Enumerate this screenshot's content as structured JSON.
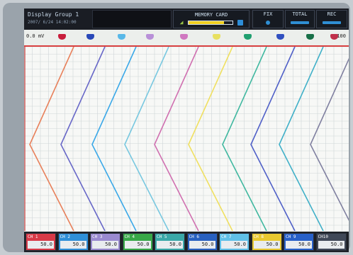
{
  "header": {
    "group_name": "Display Group 1",
    "datetime": "2007/ 6/24 14:02:00",
    "memory_card_label": "MEMORY CARD",
    "memory_card_used_fraction": 0.8,
    "fix_label": "FIX",
    "total_label": "TOTAL",
    "rec_label": "REC"
  },
  "scale": {
    "left_value": "0.0 mV",
    "right_value": "100"
  },
  "markers": [
    {
      "color": "#c81e3c"
    },
    {
      "color": "#2848b8"
    },
    {
      "color": "#58b8e8"
    },
    {
      "color": "#b890d8"
    },
    {
      "color": "#d078c0"
    },
    {
      "color": "#e8e060"
    },
    {
      "color": "#20a070"
    },
    {
      "color": "#3050c0"
    },
    {
      "color": "#187048"
    },
    {
      "color": "#c0304a"
    }
  ],
  "traces": [
    {
      "color": "#e8805a"
    },
    {
      "color": "#6868c8"
    },
    {
      "color": "#3aa8e8"
    },
    {
      "color": "#78c8e0"
    },
    {
      "color": "#d070b0"
    },
    {
      "color": "#f0e060"
    },
    {
      "color": "#40b8a0"
    },
    {
      "color": "#5060c8"
    },
    {
      "color": "#40b0c8"
    },
    {
      "color": "#8080a0"
    }
  ],
  "channels": [
    {
      "name": "CH 1",
      "value": "50.0",
      "color": "#d83a48"
    },
    {
      "name": "CH 2",
      "value": "50.0",
      "color": "#2f8fd8"
    },
    {
      "name": "CH 3",
      "value": "50.0",
      "color": "#9a8ad0"
    },
    {
      "name": "CH 4",
      "value": "50.0",
      "color": "#38a848"
    },
    {
      "name": "CH 5",
      "value": "50.0",
      "color": "#3aa8a8"
    },
    {
      "name": "CH 6",
      "value": "50.0",
      "color": "#2860c0"
    },
    {
      "name": "CH 7",
      "value": "50.0",
      "color": "#60c0e8"
    },
    {
      "name": "CH 8",
      "value": "50.0",
      "color": "#e8c830"
    },
    {
      "name": "CH 9",
      "value": "50.0",
      "color": "#2860c8"
    },
    {
      "name": "CH10",
      "value": "50.0",
      "color": "#404858"
    }
  ]
}
